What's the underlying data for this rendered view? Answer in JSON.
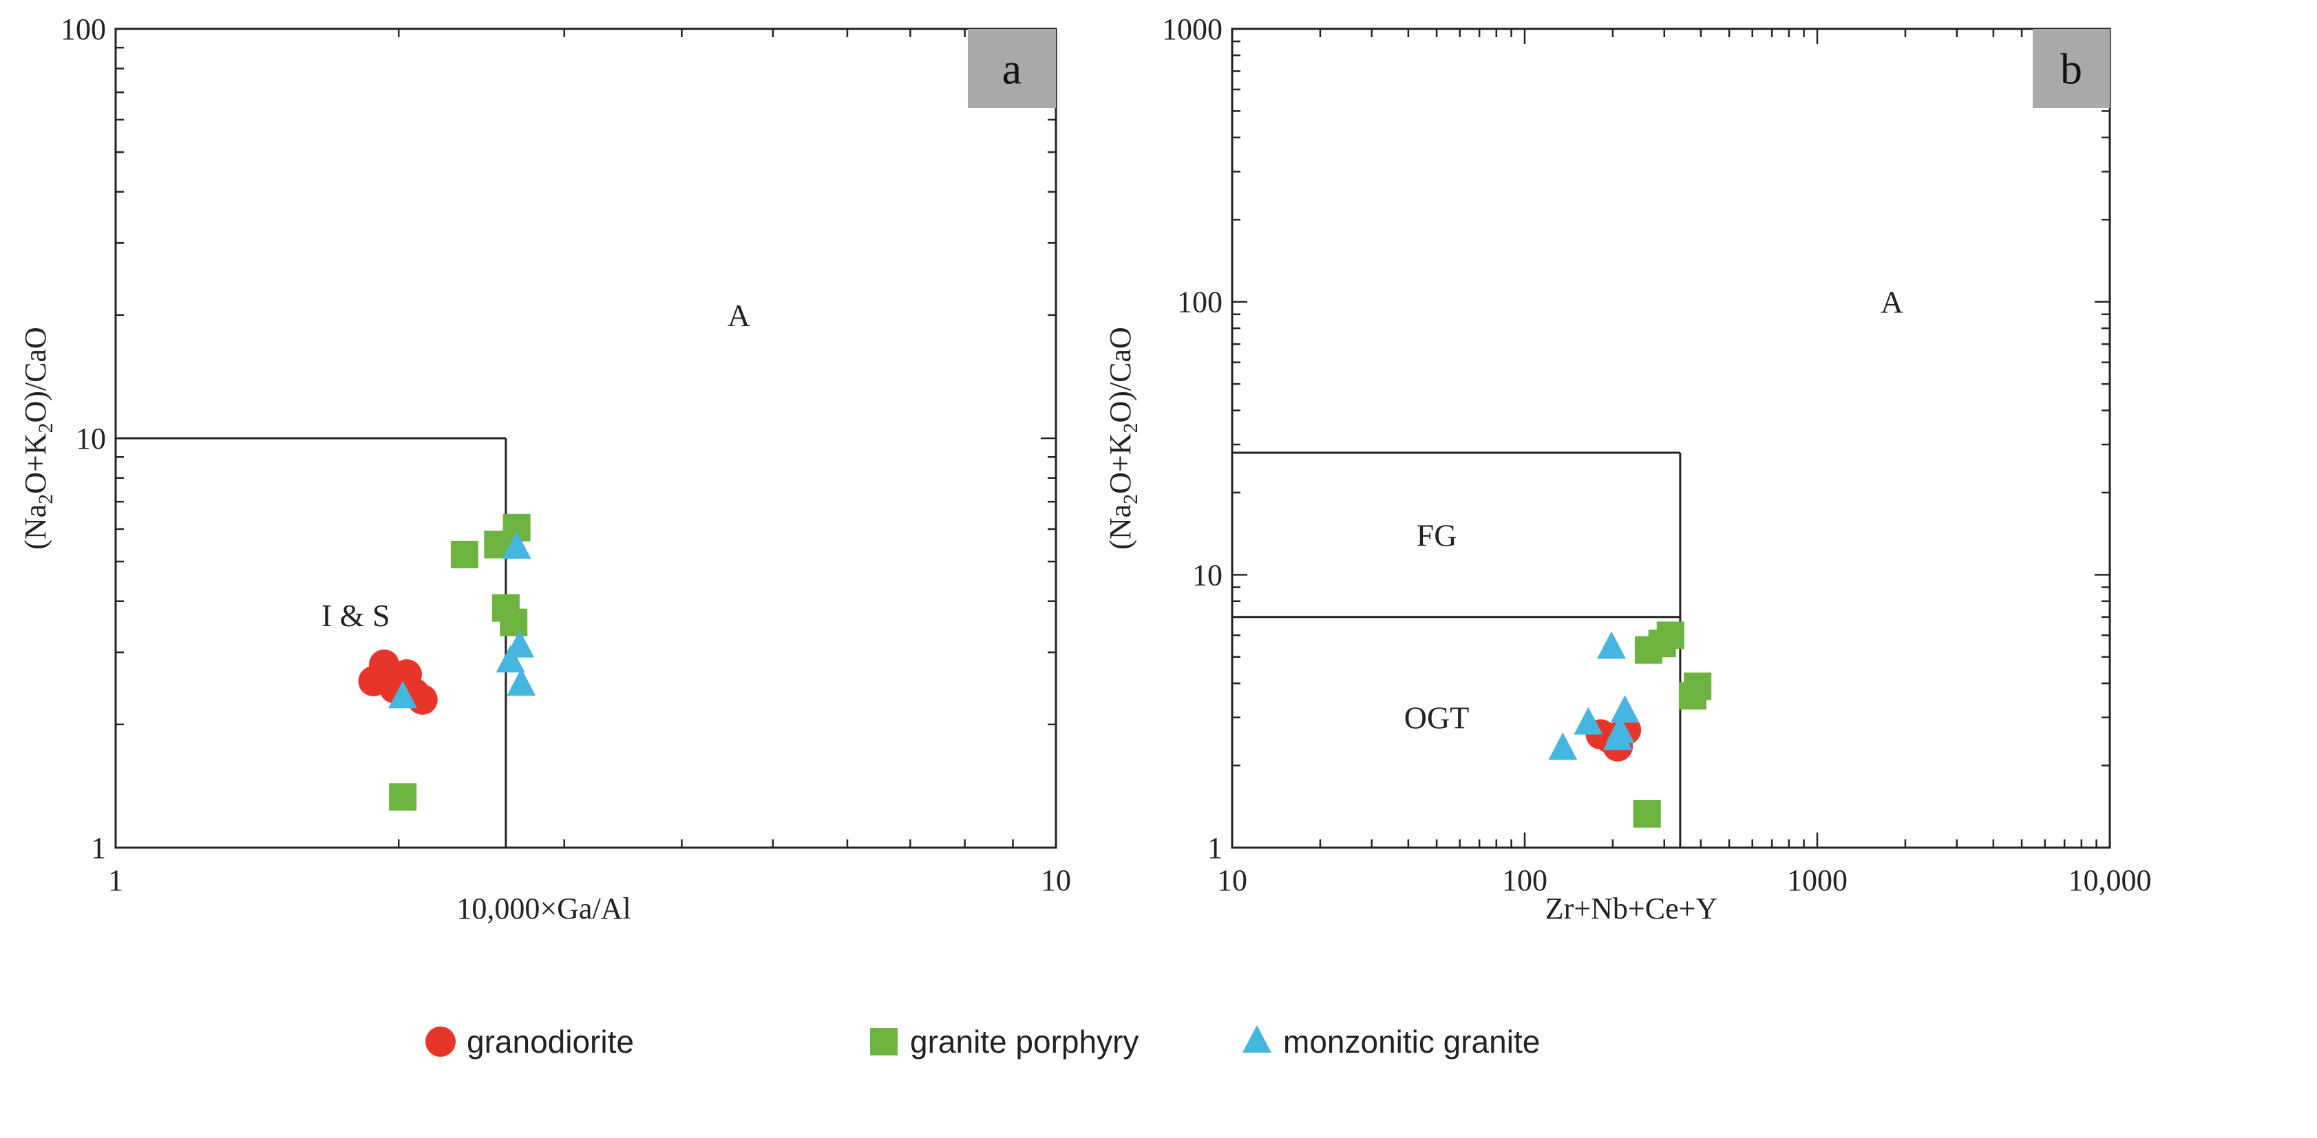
{
  "colors": {
    "granodiorite": "#e8352a",
    "granite_porphyry": "#6cb33f",
    "monzonitic_granite": "#45b6e0",
    "panel_letter_bg": "#a9a9a9",
    "frame": "#222222"
  },
  "legend": [
    {
      "key": "granodiorite",
      "label": "granodiorite",
      "marker": "circle"
    },
    {
      "key": "granite_porphyry",
      "label": "granite porphyry",
      "marker": "square"
    },
    {
      "key": "monzonitic_granite",
      "label": "monzonitic granite",
      "marker": "triangle"
    }
  ],
  "chart_data": [
    {
      "id": "a",
      "type": "scatter",
      "panel_letter": "a",
      "xscale": "log",
      "yscale": "log",
      "xlim": [
        1,
        10
      ],
      "ylim": [
        1,
        100
      ],
      "xlabel": "10,000×Ga/Al",
      "ylabel_parts": [
        "(Na",
        "2",
        "O+K",
        "2",
        "O)/CaO"
      ],
      "x_tick_labels": [
        {
          "value": 1,
          "label": "1"
        },
        {
          "value": 10,
          "label": "10"
        }
      ],
      "y_tick_labels": [
        {
          "value": 1,
          "label": "1"
        },
        {
          "value": 10,
          "label": "10"
        },
        {
          "value": 100,
          "label": "100"
        }
      ],
      "boundaries": [
        {
          "from": [
            1,
            10
          ],
          "to": [
            2.6,
            10
          ]
        },
        {
          "from": [
            2.6,
            10
          ],
          "to": [
            2.6,
            1
          ]
        }
      ],
      "region_labels": [
        {
          "text": "A",
          "x": 4.6,
          "y": 20
        },
        {
          "text": "I & S",
          "x": 1.8,
          "y": 3.7
        }
      ],
      "series": [
        {
          "key": "granodiorite",
          "points": [
            [
              1.88,
              2.55
            ],
            [
              1.93,
              2.8
            ],
            [
              1.98,
              2.45
            ],
            [
              2.04,
              2.65
            ],
            [
              2.08,
              2.38
            ],
            [
              2.12,
              2.3
            ]
          ]
        },
        {
          "key": "granite_porphyry",
          "points": [
            [
              2.35,
              5.2
            ],
            [
              2.55,
              5.5
            ],
            [
              2.67,
              6.05
            ],
            [
              2.6,
              3.85
            ],
            [
              2.65,
              3.55
            ],
            [
              2.02,
              1.33
            ]
          ]
        },
        {
          "key": "monzonitic_granite",
          "points": [
            [
              2.02,
              2.33
            ],
            [
              2.67,
              5.4
            ],
            [
              2.69,
              3.1
            ],
            [
              2.63,
              2.85
            ],
            [
              2.7,
              2.5
            ]
          ]
        }
      ]
    },
    {
      "id": "b",
      "type": "scatter",
      "panel_letter": "b",
      "xscale": "log",
      "yscale": "log",
      "xlim": [
        10,
        10000
      ],
      "ylim": [
        1,
        1000
      ],
      "xlabel": "Zr+Nb+Ce+Y",
      "ylabel_parts": [
        "(Na",
        "2",
        "O+K",
        "2",
        "O)/CaO"
      ],
      "x_tick_labels": [
        {
          "value": 10,
          "label": "10"
        },
        {
          "value": 100,
          "label": "100"
        },
        {
          "value": 1000,
          "label": "1000"
        },
        {
          "value": 10000,
          "label": "10,000"
        }
      ],
      "y_tick_labels": [
        {
          "value": 1,
          "label": "1"
        },
        {
          "value": 10,
          "label": "10"
        },
        {
          "value": 100,
          "label": "100"
        },
        {
          "value": 1000,
          "label": "1000"
        }
      ],
      "boundaries": [
        {
          "from": [
            10,
            28
          ],
          "to": [
            340,
            28
          ]
        },
        {
          "from": [
            340,
            28
          ],
          "to": [
            340,
            1
          ]
        },
        {
          "from": [
            10,
            7
          ],
          "to": [
            340,
            7
          ]
        }
      ],
      "region_labels": [
        {
          "text": "A",
          "x": 1800,
          "y": 100
        },
        {
          "text": "FG",
          "x": 50,
          "y": 14
        },
        {
          "text": "OGT",
          "x": 50,
          "y": 3.0
        }
      ],
      "series": [
        {
          "key": "granodiorite",
          "points": [
            [
              182,
              2.6
            ],
            [
              195,
              2.52
            ],
            [
              208,
              2.35
            ],
            [
              222,
              2.7
            ]
          ]
        },
        {
          "key": "granite_porphyry",
          "points": [
            [
              265,
              5.3
            ],
            [
              295,
              5.6
            ],
            [
              315,
              6.0
            ],
            [
              375,
              3.6
            ],
            [
              390,
              3.9
            ],
            [
              262,
              1.33
            ]
          ]
        },
        {
          "key": "monzonitic_granite",
          "points": [
            [
              135,
              2.3
            ],
            [
              165,
              2.85
            ],
            [
              198,
              5.4
            ],
            [
              212,
              2.65
            ],
            [
              220,
              3.15
            ],
            [
              208,
              2.5
            ]
          ]
        }
      ]
    }
  ]
}
